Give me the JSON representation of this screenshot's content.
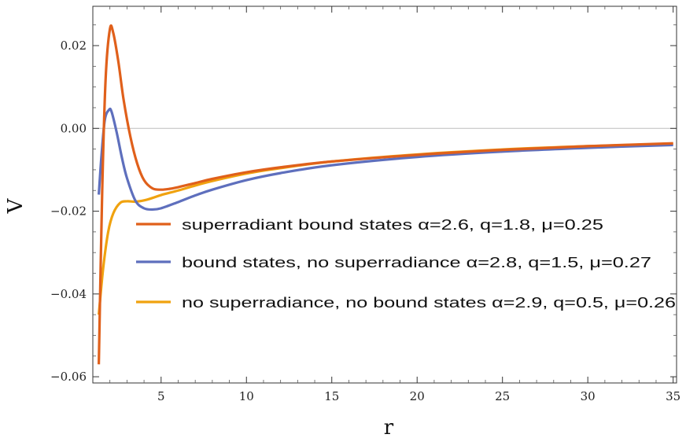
{
  "chart_data": {
    "type": "line",
    "title": "",
    "xlabel": "r",
    "ylabel": "V",
    "xlim": [
      1.0,
      35.2
    ],
    "ylim": [
      -0.0615,
      0.0295
    ],
    "x_ticks": [
      5,
      10,
      15,
      20,
      25,
      30,
      35
    ],
    "y_ticks": [
      -0.06,
      -0.04,
      -0.02,
      0.0,
      0.02
    ],
    "x_tick_labels": [
      "5",
      "10",
      "15",
      "20",
      "25",
      "30",
      "35"
    ],
    "y_tick_labels": [
      "−0.06",
      "−0.04",
      "−0.02",
      "0.00",
      "0.02"
    ],
    "zero_line": true,
    "grid": false,
    "legend_position": "center-right",
    "series": [
      {
        "name": "superradiant bound states α=2.6, q=1.8, μ=0.25",
        "color": "#e0601b",
        "x": [
          1.35,
          1.55,
          1.75,
          2.0,
          2.2,
          2.5,
          2.8,
          3.2,
          3.6,
          4.0,
          4.5,
          5.0,
          5.5,
          6.0,
          7.0,
          8.0,
          10.0,
          12.0,
          15.0,
          20.0,
          25.0,
          30.0,
          35.0
        ],
        "y": [
          -0.057,
          -0.015,
          0.012,
          0.024,
          0.023,
          0.016,
          0.007,
          -0.002,
          -0.0085,
          -0.0125,
          -0.0145,
          -0.0148,
          -0.0146,
          -0.0142,
          -0.0132,
          -0.0122,
          -0.0106,
          -0.0094,
          -0.008,
          -0.0064,
          -0.0052,
          -0.0043,
          -0.0036
        ]
      },
      {
        "name": "bound states, no superradiance α=2.8, q=1.5, μ=0.27",
        "color": "#5e6fbd",
        "x": [
          1.35,
          1.5,
          1.7,
          1.95,
          2.1,
          2.4,
          2.7,
          3.0,
          3.5,
          4.0,
          4.5,
          5.0,
          6.0,
          7.0,
          8.0,
          10.0,
          12.0,
          15.0,
          20.0,
          25.0,
          30.0,
          35.0
        ],
        "y": [
          -0.016,
          -0.007,
          0.002,
          0.0045,
          0.004,
          -0.001,
          -0.007,
          -0.012,
          -0.0175,
          -0.0193,
          -0.0196,
          -0.0193,
          -0.0178,
          -0.0162,
          -0.0148,
          -0.0125,
          -0.0108,
          -0.0089,
          -0.0069,
          -0.0056,
          -0.0047,
          -0.004
        ]
      },
      {
        "name": "no superradiance, no bound states α=2.9, q=0.5, μ=0.26",
        "color": "#f0a20f",
        "x": [
          1.35,
          1.6,
          1.9,
          2.2,
          2.6,
          3.0,
          3.5,
          4.0,
          4.5,
          5.0,
          6.0,
          7.0,
          8.0,
          10.0,
          12.0,
          15.0,
          20.0,
          25.0,
          30.0,
          35.0
        ],
        "y": [
          -0.045,
          -0.034,
          -0.025,
          -0.0205,
          -0.018,
          -0.0176,
          -0.0177,
          -0.0174,
          -0.0168,
          -0.0161,
          -0.015,
          -0.0138,
          -0.0127,
          -0.0109,
          -0.0096,
          -0.008,
          -0.0063,
          -0.0051,
          -0.0043,
          -0.0037
        ]
      }
    ]
  }
}
